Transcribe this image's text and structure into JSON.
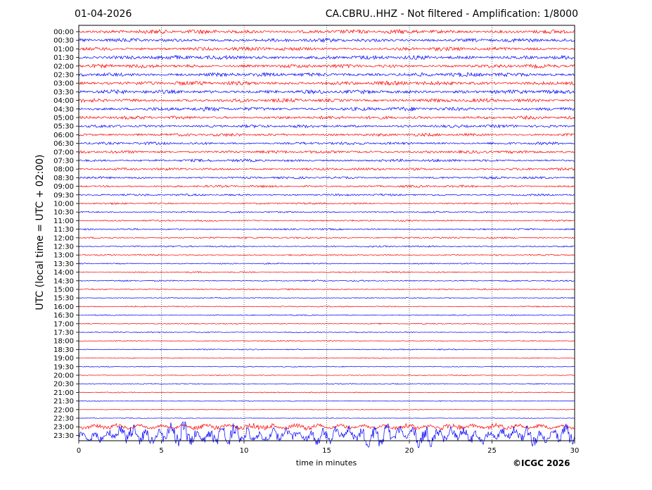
{
  "header": {
    "date": "01-04-2026",
    "title": "CA.CBRU..HHZ - Not filtered - Amplification: 1/8000"
  },
  "footer": {
    "copyright": "©ICGC 2026"
  },
  "chart_data": {
    "type": "line",
    "title": "CA.CBRU..HHZ - Not filtered - Amplification: 1/8000",
    "xlabel": "time in minutes",
    "ylabel": "UTC (local time = UTC + 02:00)",
    "xlim": [
      0,
      30
    ],
    "x_ticks": [
      0,
      5,
      10,
      15,
      20,
      25,
      30
    ],
    "grid": "vertical dotted lines at 5-minute intervals",
    "row_labels": [
      "00:00",
      "00:30",
      "01:00",
      "01:30",
      "02:00",
      "02:30",
      "03:00",
      "03:30",
      "04:00",
      "04:30",
      "05:00",
      "05:30",
      "06:00",
      "06:30",
      "07:00",
      "07:30",
      "08:00",
      "08:30",
      "09:00",
      "09:30",
      "10:00",
      "10:30",
      "11:00",
      "11:30",
      "12:00",
      "12:30",
      "13:00",
      "13:30",
      "14:00",
      "14:30",
      "15:00",
      "15:30",
      "16:00",
      "16:30",
      "17:00",
      "17:30",
      "18:00",
      "18:30",
      "19:00",
      "19:30",
      "20:00",
      "20:30",
      "21:00",
      "21:30",
      "22:00",
      "22:30",
      "23:00",
      "23:30"
    ],
    "row_colors": [
      "#ff0000",
      "#0000ff"
    ],
    "series_note": "helicorder traces alternate red/blue per 30-minute row",
    "relative_amplitude": [
      0.9,
      0.8,
      0.8,
      0.9,
      0.8,
      0.9,
      0.9,
      0.85,
      0.8,
      0.85,
      0.7,
      0.65,
      0.65,
      0.6,
      0.65,
      0.6,
      0.55,
      0.5,
      0.5,
      0.45,
      0.4,
      0.35,
      0.35,
      0.35,
      0.4,
      0.35,
      0.3,
      0.3,
      0.3,
      0.3,
      0.3,
      0.25,
      0.25,
      0.25,
      0.25,
      0.25,
      0.25,
      0.25,
      0.2,
      0.2,
      0.2,
      0.2,
      0.2,
      0.2,
      0.15,
      0.15,
      1.4,
      3.2
    ]
  }
}
